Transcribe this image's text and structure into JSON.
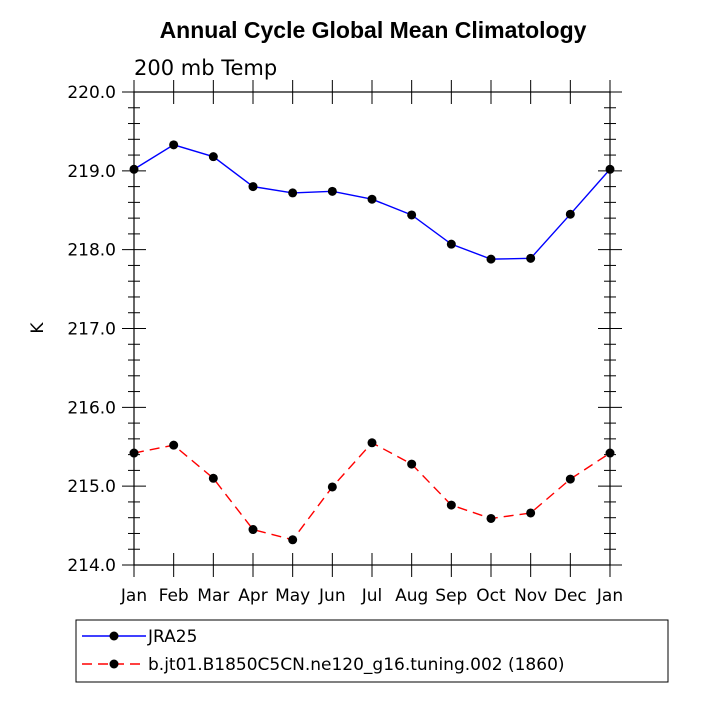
{
  "chart_data": {
    "type": "line",
    "title": "Annual Cycle Global Mean Climatology",
    "subtitle": "200 mb Temp",
    "xlabel": "",
    "ylabel": "K",
    "categories": [
      "Jan",
      "Feb",
      "Mar",
      "Apr",
      "May",
      "Jun",
      "Jul",
      "Aug",
      "Sep",
      "Oct",
      "Nov",
      "Dec",
      "Jan"
    ],
    "ylim": [
      214.0,
      220.0
    ],
    "yticks": [
      "214.0",
      "215.0",
      "216.0",
      "217.0",
      "218.0",
      "219.0",
      "220.0"
    ],
    "grid": false,
    "legend_position": "bottom",
    "series": [
      {
        "name": "JRA25",
        "color": "#0000ff",
        "line_style": "solid",
        "marker": "filled-circle",
        "values": [
          219.02,
          219.33,
          219.18,
          218.8,
          218.72,
          218.74,
          218.64,
          218.44,
          218.07,
          217.88,
          217.89,
          218.45,
          219.02
        ]
      },
      {
        "name": "b.jt01.B1850C5CN.ne120_g16.tuning.002 (1860)",
        "color": "#ff0000",
        "line_style": "dashed",
        "marker": "filled-circle",
        "values": [
          215.42,
          215.52,
          215.1,
          214.45,
          214.32,
          214.99,
          215.55,
          215.28,
          214.76,
          214.59,
          214.66,
          215.09,
          215.42
        ]
      }
    ]
  }
}
